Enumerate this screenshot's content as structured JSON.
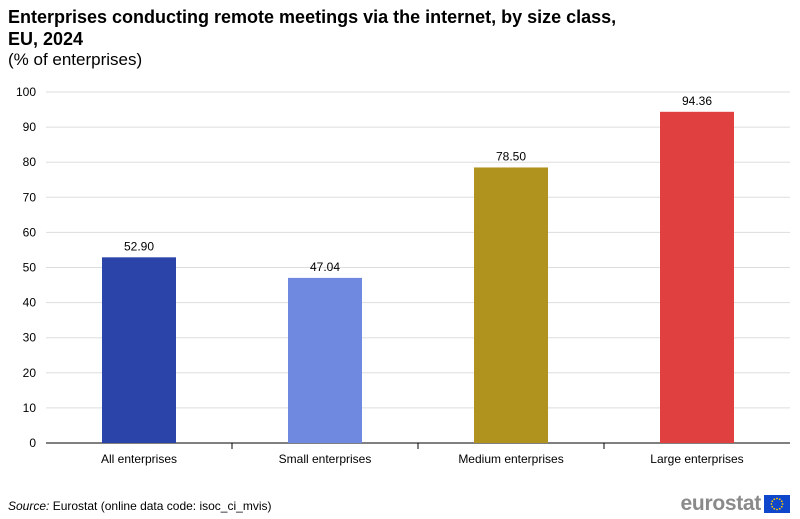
{
  "title": "Enterprises conducting remote meetings via the internet, by size class, EU, 2024",
  "subtitle": "(% of enterprises)",
  "source": {
    "label": "Source:",
    "text": "Eurostat (online data code: isoc_ci_mvis)"
  },
  "logo": {
    "text": "eurostat",
    "flag_icon": "eu-flag-icon",
    "flag_color": "#0e47cb",
    "star_color": "#ffcc00"
  },
  "chart_data": {
    "type": "bar",
    "categories": [
      "All enterprises",
      "Small enterprises",
      "Medium enterprises",
      "Large enterprises"
    ],
    "values": [
      52.9,
      47.04,
      78.5,
      94.36
    ],
    "value_labels": [
      "52.90",
      "47.04",
      "78.50",
      "94.36"
    ],
    "colors": [
      "#2a44aa",
      "#6f88e0",
      "#b0921e",
      "#e04040"
    ],
    "ylim": [
      0,
      100
    ],
    "yticks": [
      0,
      10,
      20,
      30,
      40,
      50,
      60,
      70,
      80,
      90,
      100
    ],
    "grid": true,
    "legend": "none",
    "xlabel": "",
    "ylabel": ""
  }
}
